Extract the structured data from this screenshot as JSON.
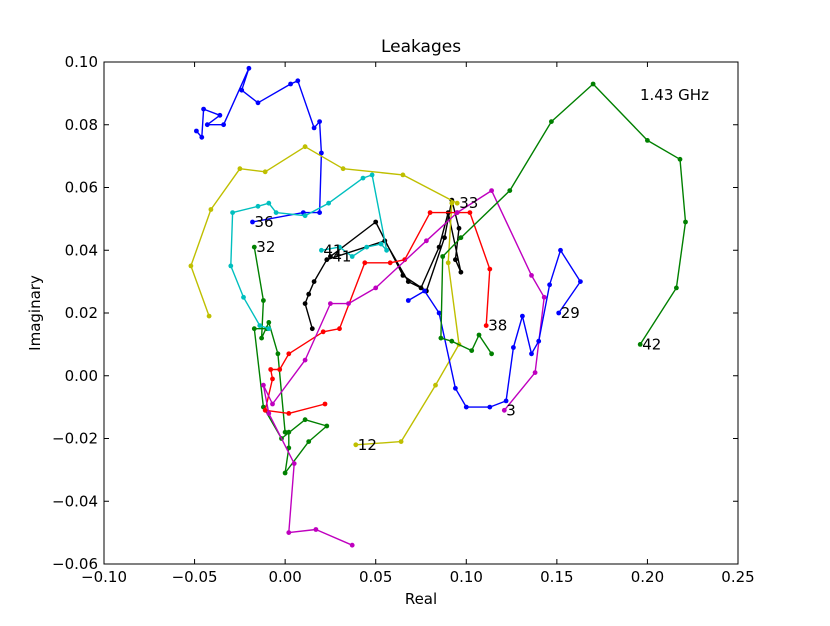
{
  "chart_data": {
    "type": "line",
    "title": "Leakages",
    "xlabel": "Real",
    "ylabel": "Imaginary",
    "xlim": [
      -0.1,
      0.25
    ],
    "ylim": [
      -0.06,
      0.1
    ],
    "xticks": [
      "−0.10",
      "−0.05",
      "0.00",
      "0.05",
      "0.10",
      "0.15",
      "0.20",
      "0.25"
    ],
    "xtick_values": [
      -0.1,
      -0.05,
      0.0,
      0.05,
      0.1,
      0.15,
      0.2,
      0.25
    ],
    "yticks": [
      "−0.06",
      "−0.04",
      "−0.02",
      "0.00",
      "0.02",
      "0.04",
      "0.06",
      "0.08",
      "0.10"
    ],
    "ytick_values": [
      -0.06,
      -0.04,
      -0.02,
      0.0,
      0.02,
      0.04,
      0.06,
      0.08,
      0.1
    ],
    "grid": false,
    "annotation": "1.43 GHz",
    "series": [
      {
        "label": "36",
        "color": "#0000ff",
        "points": [
          [
            -0.018,
            0.049
          ],
          [
            0.01,
            0.052
          ],
          [
            0.019,
            0.052
          ],
          [
            0.02,
            0.071
          ],
          [
            0.019,
            0.081
          ],
          [
            0.016,
            0.079
          ],
          [
            0.007,
            0.094
          ],
          [
            0.003,
            0.093
          ],
          [
            -0.015,
            0.087
          ],
          [
            -0.024,
            0.091
          ],
          [
            -0.02,
            0.098
          ],
          [
            -0.034,
            0.08
          ],
          [
            -0.043,
            0.08
          ],
          [
            -0.036,
            0.083
          ],
          [
            -0.045,
            0.085
          ],
          [
            -0.046,
            0.076
          ],
          [
            -0.049,
            0.078
          ]
        ]
      },
      {
        "label": "32",
        "color": "#008000",
        "points": [
          [
            -0.017,
            0.041
          ],
          [
            -0.012,
            0.024
          ],
          [
            -0.013,
            0.012
          ],
          [
            -0.009,
            0.017
          ],
          [
            -0.004,
            0.007
          ],
          [
            0.0,
            -0.018
          ],
          [
            0.002,
            -0.018
          ],
          [
            0.002,
            -0.023
          ],
          [
            0.0,
            -0.031
          ],
          [
            0.013,
            -0.021
          ],
          [
            0.023,
            -0.016
          ],
          [
            0.011,
            -0.014
          ],
          [
            -0.002,
            -0.02
          ],
          [
            -0.012,
            -0.01
          ],
          [
            -0.017,
            0.015
          ],
          [
            -0.01,
            0.015
          ]
        ]
      },
      {
        "label": "41",
        "color": "#000000",
        "points": [
          [
            0.025,
            0.038
          ],
          [
            0.05,
            0.049
          ],
          [
            0.065,
            0.032
          ],
          [
            0.078,
            0.027
          ],
          [
            0.088,
            0.044
          ],
          [
            0.092,
            0.056
          ],
          [
            0.096,
            0.047
          ],
          [
            0.094,
            0.037
          ],
          [
            0.097,
            0.033
          ],
          [
            0.09,
            0.052
          ],
          [
            0.085,
            0.041
          ],
          [
            0.075,
            0.028
          ],
          [
            0.068,
            0.03
          ],
          [
            0.055,
            0.043
          ],
          [
            0.023,
            0.037
          ],
          [
            0.016,
            0.03
          ],
          [
            0.013,
            0.026
          ],
          [
            0.011,
            0.023
          ],
          [
            0.015,
            0.015
          ]
        ]
      },
      {
        "label": "33",
        "color": "#bfbf00",
        "points": [
          [
            0.095,
            0.055
          ],
          [
            0.065,
            0.064
          ],
          [
            0.032,
            0.066
          ],
          [
            0.011,
            0.073
          ],
          [
            -0.011,
            0.065
          ],
          [
            -0.025,
            0.066
          ],
          [
            -0.041,
            0.053
          ],
          [
            -0.052,
            0.035
          ],
          [
            -0.042,
            0.019
          ]
        ]
      },
      {
        "label": "12",
        "color": "#bfbf00",
        "points": [
          [
            0.039,
            -0.022
          ],
          [
            0.064,
            -0.021
          ],
          [
            0.083,
            -0.003
          ],
          [
            0.096,
            0.01
          ],
          [
            0.09,
            0.036
          ],
          [
            0.092,
            0.055
          ]
        ]
      },
      {
        "label": "41",
        "color": "#00bfbf",
        "points": [
          [
            0.02,
            0.04
          ],
          [
            0.03,
            0.041
          ],
          [
            0.037,
            0.038
          ],
          [
            0.045,
            0.041
          ],
          [
            0.053,
            0.042
          ],
          [
            0.056,
            0.04
          ],
          [
            0.048,
            0.064
          ],
          [
            0.043,
            0.063
          ],
          [
            0.024,
            0.055
          ],
          [
            0.011,
            0.051
          ],
          [
            -0.005,
            0.052
          ],
          [
            -0.009,
            0.055
          ],
          [
            -0.015,
            0.054
          ],
          [
            -0.029,
            0.052
          ],
          [
            -0.03,
            0.035
          ],
          [
            -0.023,
            0.025
          ],
          [
            -0.014,
            0.016
          ],
          [
            -0.009,
            0.015
          ]
        ]
      },
      {
        "label": "38",
        "color": "#ff0000",
        "points": [
          [
            0.111,
            0.016
          ],
          [
            0.113,
            0.034
          ],
          [
            0.102,
            0.052
          ],
          [
            0.095,
            0.052
          ],
          [
            0.08,
            0.052
          ],
          [
            0.066,
            0.037
          ],
          [
            0.058,
            0.036
          ],
          [
            0.044,
            0.036
          ],
          [
            0.03,
            0.015
          ],
          [
            0.021,
            0.014
          ],
          [
            0.002,
            0.007
          ],
          [
            -0.003,
            0.002
          ],
          [
            -0.008,
            0.002
          ],
          [
            -0.007,
            -0.001
          ],
          [
            -0.011,
            -0.011
          ],
          [
            0.002,
            -0.012
          ],
          [
            0.022,
            -0.009
          ]
        ]
      },
      {
        "label": "3",
        "color": "#bf00bf",
        "points": [
          [
            0.121,
            -0.011
          ],
          [
            0.138,
            0.001
          ],
          [
            0.143,
            0.025
          ],
          [
            0.136,
            0.032
          ],
          [
            0.114,
            0.059
          ],
          [
            0.095,
            0.052
          ],
          [
            0.078,
            0.043
          ],
          [
            0.05,
            0.028
          ],
          [
            0.035,
            0.023
          ],
          [
            0.025,
            0.023
          ],
          [
            0.011,
            0.005
          ],
          [
            -0.007,
            -0.009
          ],
          [
            -0.012,
            -0.003
          ],
          [
            -0.009,
            -0.012
          ],
          [
            0.005,
            -0.028
          ],
          [
            0.002,
            -0.05
          ],
          [
            0.017,
            -0.049
          ],
          [
            0.037,
            -0.054
          ]
        ]
      },
      {
        "label": "29",
        "color": "#0000ff",
        "points": [
          [
            0.151,
            0.02
          ],
          [
            0.163,
            0.03
          ],
          [
            0.152,
            0.04
          ],
          [
            0.146,
            0.029
          ],
          [
            0.14,
            0.011
          ],
          [
            0.136,
            0.007
          ],
          [
            0.131,
            0.019
          ],
          [
            0.126,
            0.009
          ],
          [
            0.122,
            -0.008
          ],
          [
            0.113,
            -0.01
          ],
          [
            0.1,
            -0.01
          ],
          [
            0.094,
            -0.004
          ],
          [
            0.085,
            0.02
          ],
          [
            0.077,
            0.027
          ],
          [
            0.068,
            0.024
          ]
        ]
      },
      {
        "label": "42",
        "color": "#008000",
        "points": [
          [
            0.196,
            0.01
          ],
          [
            0.216,
            0.028
          ],
          [
            0.221,
            0.049
          ],
          [
            0.218,
            0.069
          ],
          [
            0.2,
            0.075
          ],
          [
            0.17,
            0.093
          ],
          [
            0.147,
            0.081
          ],
          [
            0.124,
            0.059
          ],
          [
            0.097,
            0.044
          ],
          [
            0.087,
            0.038
          ],
          [
            0.086,
            0.012
          ],
          [
            0.092,
            0.011
          ],
          [
            0.103,
            0.008
          ],
          [
            0.107,
            0.013
          ],
          [
            0.114,
            0.007
          ]
        ]
      }
    ]
  }
}
